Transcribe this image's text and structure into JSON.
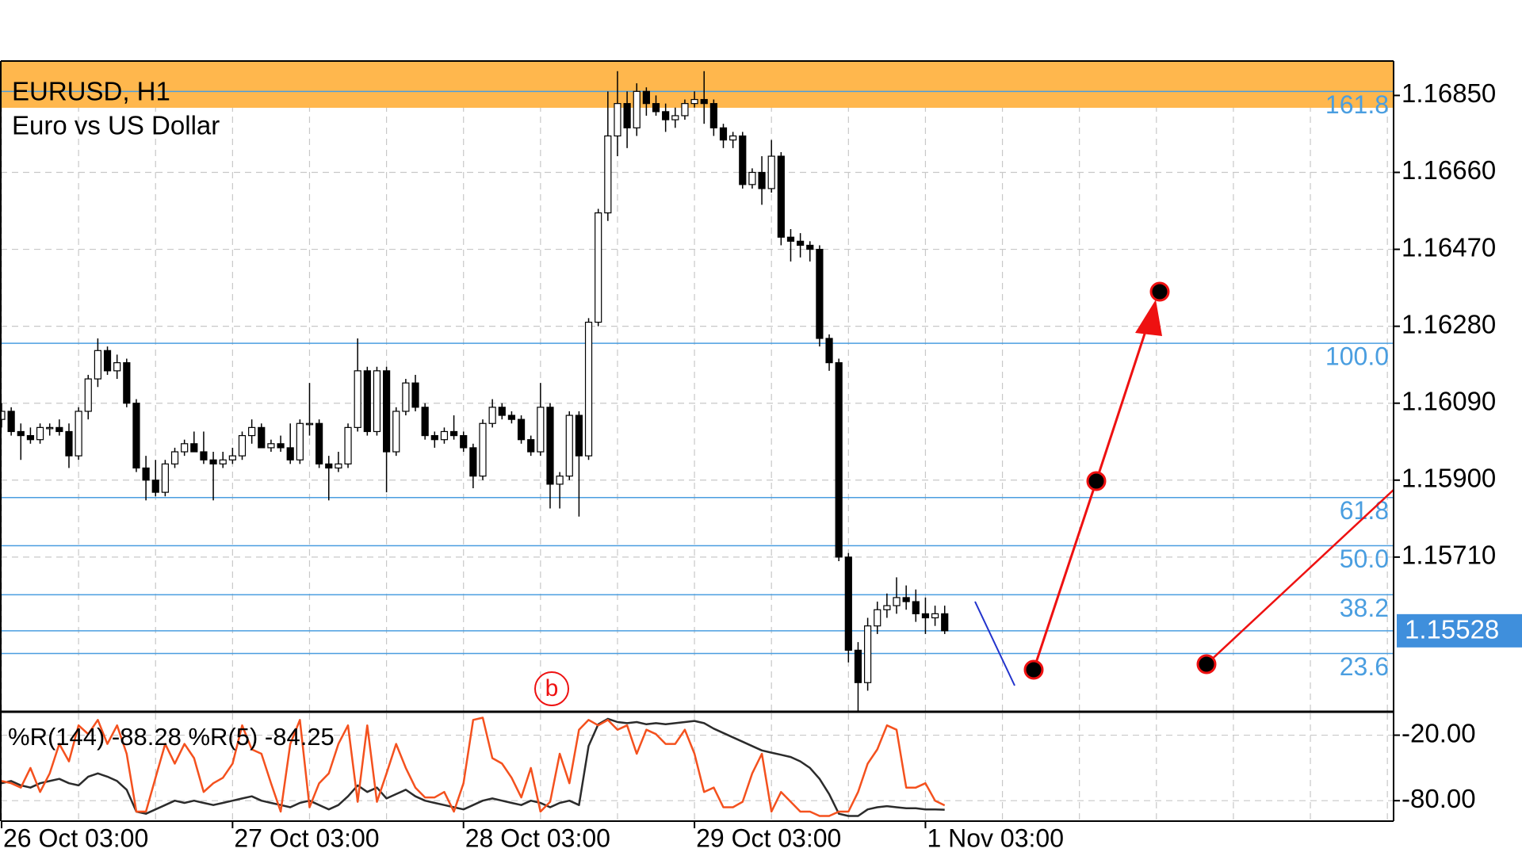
{
  "chart_data": {
    "type": "candlestick",
    "title": "EURUSD, H1",
    "subtitle": "Euro vs US Dollar",
    "categories": [
      "26 Oct 03:00",
      null,
      null,
      null,
      null,
      null,
      null,
      null,
      null,
      null,
      null,
      null,
      null,
      null,
      null,
      null,
      null,
      null,
      null,
      null,
      null,
      null,
      null,
      null,
      "27 Oct 03:00",
      null,
      null,
      null,
      null,
      null,
      null,
      null,
      null,
      null,
      null,
      null,
      null,
      null,
      null,
      null,
      null,
      null,
      null,
      null,
      null,
      null,
      null,
      null,
      "28 Oct 03:00",
      null,
      null,
      null,
      null,
      null,
      null,
      null,
      null,
      null,
      null,
      null,
      null,
      null,
      null,
      null,
      null,
      null,
      null,
      null,
      null,
      null,
      null,
      null,
      "29 Oct 03:00",
      null,
      null,
      null,
      null,
      null,
      null,
      null,
      null,
      null,
      null,
      null,
      null,
      null,
      null,
      null,
      null,
      null,
      null,
      null,
      null,
      null,
      null,
      null,
      "1 Nov 03:00",
      null,
      null
    ],
    "open": [
      1.1605,
      1.1607,
      1.1602,
      1.1601,
      1.16,
      1.1603,
      1.1603,
      1.1602,
      1.1596,
      1.1607,
      1.1615,
      1.1622,
      1.1617,
      1.1619,
      1.1609,
      1.1593,
      1.159,
      1.1587,
      1.1594,
      1.1597,
      1.1599,
      1.1597,
      1.1595,
      1.1594,
      1.1595,
      1.1596,
      1.1601,
      1.1603,
      1.1598,
      1.1599,
      1.1598,
      1.1595,
      1.1604,
      1.1604,
      1.1594,
      1.1593,
      1.1594,
      1.1603,
      1.1617,
      1.1602,
      1.1617,
      1.1597,
      1.1607,
      1.1614,
      1.1608,
      1.1601,
      1.16,
      1.1602,
      1.1601,
      1.1598,
      1.1591,
      1.1604,
      1.1608,
      1.1606,
      1.1605,
      1.16,
      1.1597,
      1.1608,
      1.1589,
      1.1591,
      1.1606,
      1.1596,
      1.1629,
      1.1656,
      1.1675,
      1.1683,
      1.1677,
      1.1686,
      1.1683,
      1.1681,
      1.1679,
      1.168,
      1.1683,
      1.1684,
      1.1683,
      1.1677,
      1.1674,
      1.1675,
      1.1663,
      1.1666,
      1.1662,
      1.167,
      1.165,
      1.1649,
      1.1648,
      1.1647,
      1.1625,
      1.1619,
      1.1571,
      1.1548,
      1.154,
      1.1554,
      1.1558,
      1.1559,
      1.1561,
      1.156,
      1.1557,
      1.1556,
      1.1557
    ],
    "high": [
      1.1609,
      1.1608,
      1.1604,
      1.1603,
      1.1604,
      1.1604,
      1.1605,
      1.1604,
      1.1608,
      1.1616,
      1.1625,
      1.1623,
      1.1621,
      1.162,
      1.161,
      1.1596,
      1.1595,
      1.1595,
      1.1598,
      1.16,
      1.1602,
      1.1602,
      1.1597,
      1.1597,
      1.1598,
      1.1602,
      1.1605,
      1.1604,
      1.16,
      1.1601,
      1.1604,
      1.1605,
      1.1614,
      1.1605,
      1.1596,
      1.1597,
      1.1604,
      1.1625,
      1.1618,
      1.1618,
      1.1618,
      1.1608,
      1.1615,
      1.1616,
      1.1609,
      1.1602,
      1.1603,
      1.1606,
      1.1602,
      1.1599,
      1.1605,
      1.161,
      1.1609,
      1.1607,
      1.1606,
      1.1601,
      1.1614,
      1.1609,
      1.1592,
      1.1607,
      1.1607,
      1.163,
      1.1657,
      1.1686,
      1.1691,
      1.1686,
      1.1688,
      1.1687,
      1.1685,
      1.1683,
      1.1682,
      1.1684,
      1.1686,
      1.1691,
      1.1684,
      1.1678,
      1.1676,
      1.1676,
      1.1667,
      1.167,
      1.1674,
      1.1671,
      1.1652,
      1.1651,
      1.1649,
      1.1648,
      1.1626,
      1.162,
      1.1572,
      1.155,
      1.1556,
      1.156,
      1.1562,
      1.1566,
      1.1564,
      1.1563,
      1.1561,
      1.1559,
      1.1559
    ],
    "low": [
      1.1603,
      1.1601,
      1.1595,
      1.1599,
      1.1599,
      1.1601,
      1.1601,
      1.1593,
      1.1595,
      1.1605,
      1.1613,
      1.1616,
      1.1615,
      1.1608,
      1.1592,
      1.1585,
      1.1586,
      1.1586,
      1.1593,
      1.1596,
      1.1597,
      1.1594,
      1.1585,
      1.1593,
      1.1594,
      1.1595,
      1.1599,
      1.1598,
      1.1597,
      1.1597,
      1.1594,
      1.1594,
      1.1601,
      1.1593,
      1.1585,
      1.1592,
      1.1593,
      1.1602,
      1.1601,
      1.1601,
      1.1587,
      1.1596,
      1.1606,
      1.1607,
      1.16,
      1.1598,
      1.1599,
      1.16,
      1.1597,
      1.1588,
      1.159,
      1.1603,
      1.1605,
      1.1604,
      1.1599,
      1.1596,
      1.1596,
      1.1583,
      1.1583,
      1.159,
      1.1581,
      1.1595,
      1.1628,
      1.1654,
      1.167,
      1.1672,
      1.1675,
      1.168,
      1.168,
      1.1676,
      1.1677,
      1.1679,
      1.1682,
      1.1678,
      1.1675,
      1.1672,
      1.1672,
      1.1662,
      1.1662,
      1.1658,
      1.1661,
      1.1648,
      1.1644,
      1.1645,
      1.1644,
      1.1623,
      1.1617,
      1.157,
      1.1545,
      1.1533,
      1.1538,
      1.1552,
      1.1556,
      1.1557,
      1.1558,
      1.1555,
      1.1552,
      1.1554,
      1.1552
    ],
    "close": [
      1.1607,
      1.1602,
      1.1601,
      1.16,
      1.1603,
      1.1603,
      1.1602,
      1.1596,
      1.1607,
      1.1615,
      1.1622,
      1.1617,
      1.1619,
      1.1609,
      1.1593,
      1.159,
      1.1587,
      1.1594,
      1.1597,
      1.1599,
      1.1597,
      1.1595,
      1.1594,
      1.1595,
      1.1596,
      1.1601,
      1.1603,
      1.1598,
      1.1599,
      1.1598,
      1.1595,
      1.1604,
      1.1604,
      1.1594,
      1.1593,
      1.1594,
      1.1603,
      1.1617,
      1.1602,
      1.1617,
      1.1597,
      1.1607,
      1.1614,
      1.1608,
      1.1601,
      1.16,
      1.1602,
      1.1601,
      1.1598,
      1.1591,
      1.1604,
      1.1608,
      1.1606,
      1.1605,
      1.16,
      1.1597,
      1.1608,
      1.1589,
      1.1591,
      1.1606,
      1.1596,
      1.1629,
      1.1656,
      1.1675,
      1.1683,
      1.1677,
      1.1686,
      1.1683,
      1.1681,
      1.1679,
      1.168,
      1.1683,
      1.1684,
      1.1683,
      1.1677,
      1.1674,
      1.1675,
      1.1663,
      1.1666,
      1.1662,
      1.167,
      1.165,
      1.1649,
      1.1648,
      1.1647,
      1.1625,
      1.1619,
      1.1571,
      1.1548,
      1.154,
      1.1554,
      1.1558,
      1.1559,
      1.1561,
      1.156,
      1.1557,
      1.1556,
      1.1557,
      1.15528
    ],
    "up_color": "#ffffff",
    "down_color": "#000000",
    "ylim": [
      1.1533,
      1.16935
    ],
    "yticks": [
      {
        "value": 1.1685,
        "label": "1.16850"
      },
      {
        "value": 1.1666,
        "label": "1.16660"
      },
      {
        "value": 1.1647,
        "label": "1.16470"
      },
      {
        "value": 1.1628,
        "label": "1.16280"
      },
      {
        "value": 1.1609,
        "label": "1.16090"
      },
      {
        "value": 1.159,
        "label": "1.15900"
      },
      {
        "value": 1.1571,
        "label": "1.15710"
      }
    ],
    "grid": true,
    "current_price": {
      "value": 1.15528,
      "label": "1.15528"
    },
    "fib_color": "#4a9ee0",
    "fib_levels": [
      {
        "label": "161.8",
        "price": 1.1686
      },
      {
        "label": "100.0",
        "price": 1.16238
      },
      {
        "label": "61.8",
        "price": 1.15857
      },
      {
        "label": "50.0",
        "price": 1.15738
      },
      {
        "label": "38.2",
        "price": 1.15617
      },
      {
        "label": "23.6",
        "price": 1.15472
      }
    ],
    "annotation": "b",
    "indicator": {
      "label": "%R(144) -88.28 %R(5) -84.25",
      "ylim": [
        -98,
        0
      ],
      "yticks": [
        {
          "value": -20,
          "label": "-20.00"
        },
        {
          "value": -80,
          "label": "-80.00"
        }
      ],
      "series": [
        {
          "color": "#2b2b2b",
          "values": [
            -64,
            -62,
            -66,
            -68,
            -64,
            -62,
            -60,
            -64,
            -66,
            -58,
            -55,
            -58,
            -62,
            -70,
            -90,
            -92,
            -88,
            -84,
            -80,
            -82,
            -80,
            -82,
            -84,
            -82,
            -80,
            -78,
            -76,
            -80,
            -82,
            -84,
            -86,
            -82,
            -80,
            -84,
            -88,
            -84,
            -76,
            -66,
            -72,
            -68,
            -78,
            -74,
            -70,
            -76,
            -80,
            -82,
            -84,
            -86,
            -88,
            -84,
            -80,
            -78,
            -80,
            -82,
            -84,
            -80,
            -82,
            -86,
            -82,
            -80,
            -84,
            -30,
            -10,
            -5,
            -8,
            -9,
            -8,
            -10,
            -9,
            -10,
            -9,
            -8,
            -7,
            -9,
            -14,
            -18,
            -22,
            -26,
            -30,
            -34,
            -36,
            -38,
            -40,
            -44,
            -50,
            -60,
            -74,
            -92,
            -94,
            -94,
            -88,
            -86,
            -85,
            -86,
            -87,
            -87,
            -88,
            -88,
            -88.28
          ]
        },
        {
          "color": "#f4511e",
          "values": [
            -62,
            -64,
            -68,
            -50,
            -72,
            -55,
            -28,
            -44,
            -11,
            -19,
            -6,
            -28,
            -11,
            -37,
            -90,
            -90,
            -59,
            -28,
            -46,
            -28,
            -41,
            -72,
            -64,
            -59,
            -46,
            -11,
            -33,
            -37,
            -64,
            -90,
            -28,
            -6,
            -86,
            -64,
            -55,
            -28,
            -11,
            -81,
            -11,
            -81,
            -55,
            -28,
            -50,
            -68,
            -77,
            -77,
            -72,
            -90,
            -64,
            -6,
            -4,
            -41,
            -46,
            -59,
            -77,
            -50,
            -90,
            -81,
            -37,
            -64,
            -15,
            -6,
            -11,
            -6,
            -15,
            -11,
            -37,
            -15,
            -19,
            -28,
            -28,
            -15,
            -37,
            -72,
            -68,
            -86,
            -86,
            -81,
            -55,
            -37,
            -90,
            -72,
            -81,
            -90,
            -90,
            -94,
            -94,
            -90,
            -90,
            -72,
            -46,
            -33,
            -11,
            -15,
            -68,
            -68,
            -64,
            -80,
            -84.25
          ]
        }
      ]
    }
  }
}
